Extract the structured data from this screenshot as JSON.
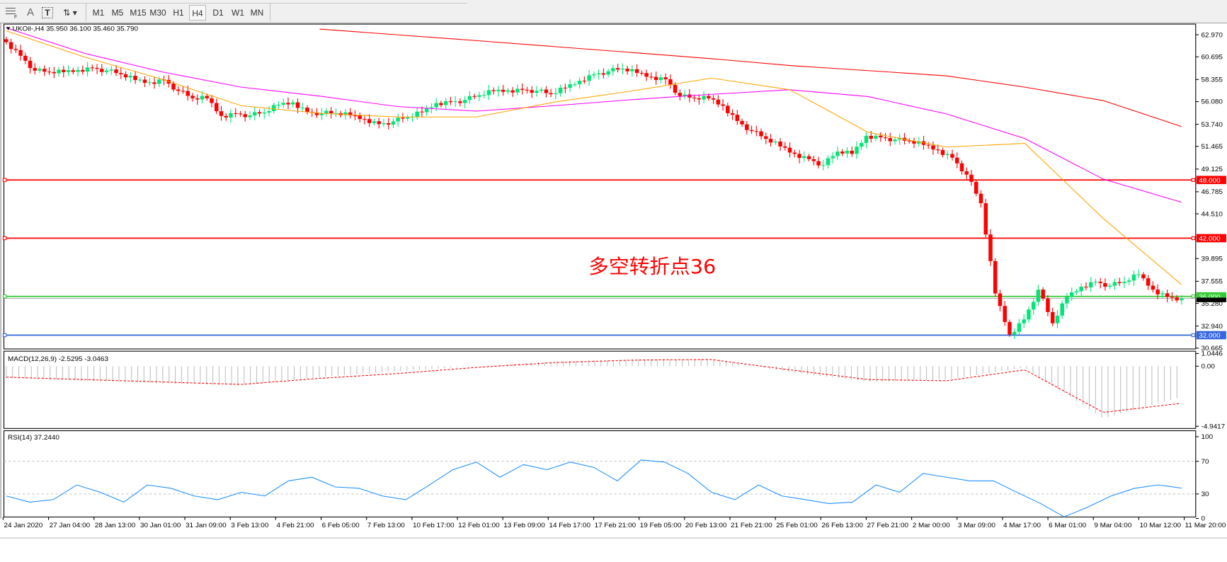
{
  "toolbar": {
    "tools": [
      {
        "icon": "grid-properties-icon"
      },
      {
        "icon": "text-A-icon",
        "label": "A"
      },
      {
        "icon": "text-label-icon",
        "label": "T"
      },
      {
        "icon": "arrows-icon",
        "label": "▾"
      }
    ],
    "timeframes": [
      "M1",
      "M5",
      "M15",
      "M30",
      "H1",
      "H4",
      "D1",
      "W1",
      "MN"
    ],
    "selected_timeframe": "H4"
  },
  "chart": {
    "symbol_line": "UKOil-,H4  35.950 36.100 35.460 35.790",
    "annotation": "多空转折点36",
    "annotation_color": "#ff0000",
    "price_axis": [
      "62.970",
      "60.695",
      "58.355",
      "56.080",
      "53.740",
      "51.465",
      "49.125",
      "46.785",
      "44.510",
      "39.895",
      "37.555",
      "35.280",
      "32.940",
      "30.665"
    ],
    "current_price": 35.79,
    "levels": [
      {
        "price": 48.0,
        "label": "48.000",
        "color": "#ff0000"
      },
      {
        "price": 42.0,
        "label": "42.000",
        "color": "#ff0000"
      },
      {
        "price": 36.0,
        "label": "36.000",
        "color": "#33cc33"
      },
      {
        "price": 32.0,
        "label": "32.000",
        "color": "#3366dd"
      }
    ],
    "colors": {
      "bull": "#00e676",
      "bear": "#ff0000",
      "ma_slow": "#ff0000",
      "ma_mid": "#ff00ff",
      "ma_fast": "#ffa500",
      "macd_hist": "#c0c0c0",
      "macd_signal": "#ff0000",
      "rsi": "#1e90ff"
    },
    "closes": [
      62.21,
      60.8,
      59.27,
      59.12,
      59.12,
      59.34,
      59.55,
      59.28,
      58.9,
      58.3,
      58.06,
      58.32,
      57.19,
      56.42,
      56.42,
      54.6,
      54.85,
      54.65,
      54.95,
      55.75,
      56.0,
      55.0,
      54.88,
      54.88,
      54.65,
      54.28,
      53.76,
      54.04,
      54.46,
      54.98,
      55.93,
      56.03,
      56.25,
      56.73,
      57.15,
      57.24,
      57.3,
      57.2,
      56.84,
      57.5,
      58.23,
      58.9,
      59.2,
      59.47,
      59.04,
      58.63,
      58.38,
      56.65,
      56.42,
      56.42,
      55.65,
      54.08,
      53.04,
      52.24,
      51.46,
      50.69,
      50.15,
      49.53,
      50.93,
      50.69,
      52.55,
      52.39,
      52.16,
      52.0,
      51.62,
      51.08,
      50.3,
      48.55,
      45.6,
      36.3,
      32.07,
      33.62,
      36.7,
      33.23,
      35.94,
      37.0,
      37.5,
      37.1,
      37.5,
      38.27,
      36.7,
      35.94,
      35.79
    ],
    "ma_slow": [
      null,
      null,
      null,
      null,
      63.56,
      62.96,
      62.37,
      61.75,
      61.13,
      60.5,
      59.8,
      59.27,
      58.73,
      57.57,
      56.18,
      53.5
    ],
    "ma_mid": [
      63.68,
      61.05,
      59.12,
      57.57,
      56.64,
      55.56,
      55.1,
      55.66,
      56.29,
      56.83,
      57.3,
      56.6,
      54.8,
      52.27,
      48.09,
      45.7
    ],
    "ma_fast": [
      63.37,
      60.67,
      58.35,
      55.65,
      54.88,
      54.49,
      54.49,
      56.03,
      57.19,
      58.5,
      57.3,
      52.9,
      51.39,
      51.77,
      44.03,
      37.2
    ],
    "time_axis": [
      "24 Jan 2020",
      "27 Jan 04:00",
      "28 Jan 13:00",
      "30 Jan 01:00",
      "31 Jan 09:00",
      "3 Feb 13:00",
      "4 Feb 21:00",
      "6 Feb 05:00",
      "7 Feb 13:00",
      "10 Feb 17:00",
      "12 Feb 01:00",
      "13 Feb 09:00",
      "14 Feb 17:00",
      "17 Feb 21:00",
      "19 Feb 05:00",
      "20 Feb 13:00",
      "21 Feb 21:00",
      "25 Feb 01:00",
      "26 Feb 13:00",
      "27 Feb 21:00",
      "2 Mar 00:00",
      "3 Mar 09:00",
      "4 Mar 17:00",
      "6 Mar 01:00",
      "9 Mar 04:00",
      "10 Mar 12:00",
      "11 Mar 20:00"
    ]
  },
  "macd": {
    "label": "MACD(12,26,9) -2.5295 -3.0463",
    "axis": [
      "1.0446",
      "0.00",
      "-4.9417"
    ],
    "histogram": [
      -1.0,
      -1.2,
      -1.4,
      -1.6,
      -0.9,
      -0.4,
      0.0,
      0.4,
      0.55,
      0.6,
      -0.5,
      -1.3,
      -1.1,
      -0.1,
      -4.3,
      -2.53
    ],
    "signal": [
      -0.9,
      -1.1,
      -1.3,
      -1.5,
      -1.0,
      -0.6,
      -0.1,
      0.3,
      0.5,
      0.55,
      -0.3,
      -1.1,
      -1.2,
      -0.3,
      -3.8,
      -3.05
    ]
  },
  "rsi": {
    "label": "RSI(14) 37.2440",
    "axis": [
      "100",
      "70",
      "30",
      "0"
    ],
    "values": [
      27.5,
      20,
      23,
      41,
      32,
      20,
      41,
      37,
      27.5,
      23,
      32,
      27.5,
      46,
      50.5,
      38.5,
      37,
      27.5,
      23,
      41,
      59.6,
      69,
      50.5,
      66,
      59.6,
      69,
      62.4,
      46,
      71.5,
      69,
      55,
      32,
      23,
      41,
      27.5,
      23,
      18.3,
      20,
      41,
      32,
      55,
      50.5,
      46,
      46,
      32,
      18.3,
      2,
      13.8,
      27.5,
      37,
      41,
      37.2
    ]
  }
}
